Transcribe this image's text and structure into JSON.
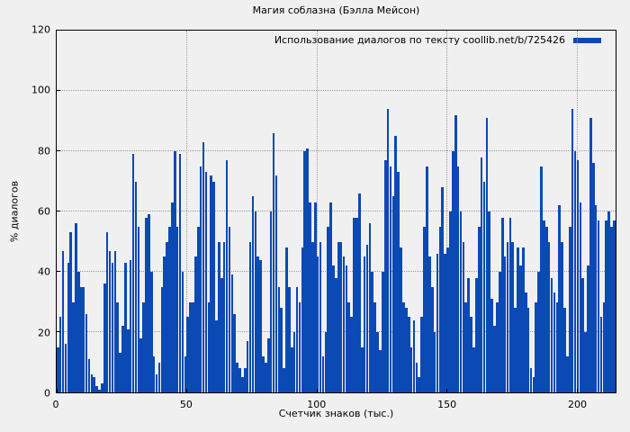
{
  "title": "Магия соблазна (Бэлла Мейсон)",
  "legend": {
    "label": "Использование диалогов по тексту coollib.net/b/725426"
  },
  "axes": {
    "x_label": "Счетчик знаков (тыс.)",
    "y_label": "% диалогов",
    "x_ticks": [
      0,
      50,
      100,
      150,
      200
    ],
    "y_ticks": [
      0,
      20,
      40,
      60,
      80,
      100,
      120
    ]
  },
  "colors": {
    "bar": "#0b49b4",
    "background": "#f0f0f0",
    "grid": "#9a9a9a",
    "border": "#000000",
    "text": "#000000"
  },
  "chart_data": {
    "type": "bar",
    "title": "Магия соблазна (Бэлла Мейсон)",
    "xlabel": "Счетчик знаков (тыс.)",
    "ylabel": "% диалогов",
    "legend_entries": [
      "Использование диалогов по тексту coollib.net/b/725426"
    ],
    "legend_position": "top-right",
    "grid": true,
    "xlim": [
      0,
      215
    ],
    "ylim": [
      0,
      120
    ],
    "x_start": 0,
    "x_step": 1,
    "values": [
      15,
      25,
      47,
      16,
      43,
      53,
      30,
      56,
      40,
      35,
      35,
      26,
      11,
      6,
      5,
      2,
      1,
      3,
      36,
      53,
      47,
      43,
      47,
      30,
      13,
      22,
      43,
      21,
      44,
      79,
      70,
      55,
      18,
      30,
      58,
      59,
      40,
      12,
      6,
      10,
      35,
      45,
      50,
      55,
      63,
      80,
      55,
      79,
      40,
      12,
      25,
      30,
      30,
      45,
      55,
      75,
      83,
      73,
      30,
      72,
      70,
      24,
      50,
      38,
      50,
      77,
      55,
      39,
      26,
      10,
      8,
      5,
      8,
      17,
      50,
      65,
      60,
      45,
      44,
      12,
      10,
      18,
      60,
      86,
      72,
      35,
      28,
      8,
      48,
      35,
      15,
      20,
      35,
      30,
      48,
      80,
      81,
      63,
      50,
      63,
      45,
      50,
      12,
      20,
      55,
      63,
      42,
      38,
      50,
      50,
      45,
      42,
      30,
      25,
      58,
      58,
      66,
      15,
      45,
      49,
      56,
      40,
      30,
      20,
      14,
      40,
      77,
      94,
      75,
      65,
      85,
      73,
      48,
      30,
      28,
      25,
      15,
      24,
      10,
      5,
      25,
      55,
      75,
      45,
      35,
      20,
      46,
      55,
      68,
      46,
      48,
      60,
      80,
      92,
      75,
      60,
      50,
      30,
      38,
      25,
      15,
      38,
      55,
      78,
      70,
      91,
      60,
      31,
      22,
      30,
      40,
      58,
      45,
      50,
      58,
      50,
      28,
      48,
      42,
      48,
      33,
      28,
      8,
      5,
      30,
      40,
      75,
      57,
      55,
      50,
      38,
      33,
      30,
      62,
      50,
      28,
      12,
      55,
      94,
      80,
      77,
      63,
      38,
      20,
      42,
      91,
      76,
      62,
      57,
      25,
      30,
      57,
      60,
      55,
      57
    ]
  }
}
